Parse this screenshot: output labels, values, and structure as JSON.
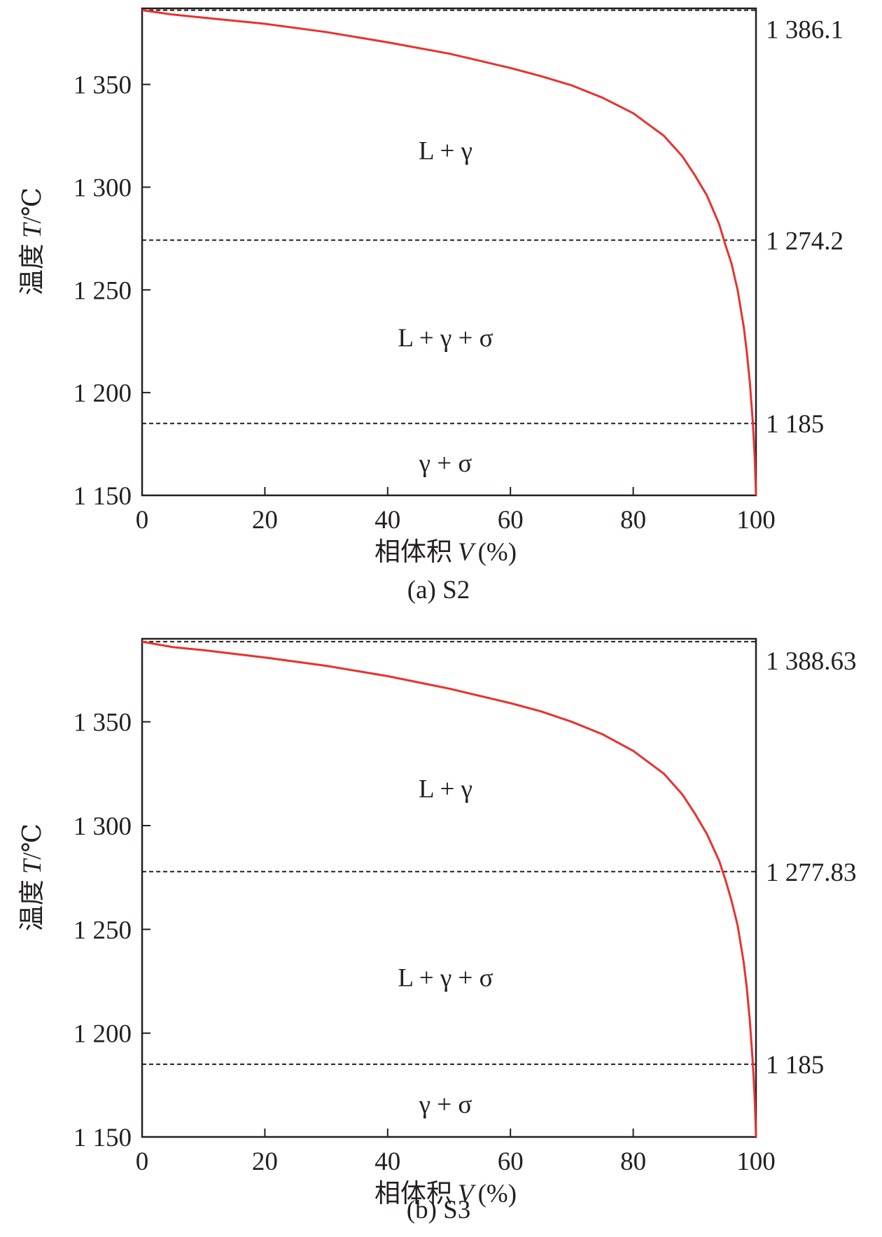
{
  "chart_data": [
    {
      "type": "line",
      "caption": "(a) S2",
      "xlabel": {
        "cjk": "相体积",
        "italic": "V",
        "unit": "(%)"
      },
      "ylabel": {
        "cjk": "温度",
        "italic": "T",
        "unit": "/℃"
      },
      "xlim": [
        0,
        100
      ],
      "ylim": [
        1150,
        1387
      ],
      "xticks": [
        0,
        20,
        40,
        60,
        80,
        100
      ],
      "xtick_labels": [
        "0",
        "20",
        "40",
        "60",
        "80",
        "100"
      ],
      "yticks": [
        1150,
        1200,
        1250,
        1300,
        1350
      ],
      "ytick_labels": [
        "1 150",
        "1 200",
        "1 250",
        "1 300",
        "1 350"
      ],
      "reference_lines": [
        {
          "y": 1386.1,
          "label": "1 386.1"
        },
        {
          "y": 1274.2,
          "label": "1 274.2"
        },
        {
          "y": 1185,
          "label": "1 185"
        }
      ],
      "regions": [
        {
          "label": "L + γ",
          "x": 50,
          "y": 1318
        },
        {
          "label": "L + γ + σ",
          "x": 50,
          "y": 1227
        },
        {
          "label": "γ + σ",
          "x": 50,
          "y": 1166
        }
      ],
      "series": [
        {
          "color": "#e8322e",
          "x": [
            0,
            5,
            10,
            20,
            30,
            40,
            50,
            60,
            65,
            70,
            75,
            80,
            85,
            88,
            90,
            92,
            94,
            95,
            96,
            97,
            98,
            98.5,
            99,
            99.5,
            99.8,
            100
          ],
          "y": [
            1386.1,
            1384,
            1382.5,
            1379.5,
            1375.5,
            1370.5,
            1365,
            1358,
            1354,
            1349.5,
            1343.5,
            1336,
            1325,
            1315,
            1306,
            1296,
            1282,
            1272,
            1263,
            1250,
            1232,
            1220,
            1205,
            1185,
            1168,
            1150
          ]
        }
      ]
    },
    {
      "type": "line",
      "caption": "(b) S3",
      "xlabel": {
        "cjk": "相体积",
        "italic": "V",
        "unit": "(%)"
      },
      "ylabel": {
        "cjk": "温度",
        "italic": "T",
        "unit": "/℃"
      },
      "xlim": [
        0,
        100
      ],
      "ylim": [
        1150,
        1390
      ],
      "xticks": [
        0,
        20,
        40,
        60,
        80,
        100
      ],
      "xtick_labels": [
        "0",
        "20",
        "40",
        "60",
        "80",
        "100"
      ],
      "yticks": [
        1150,
        1200,
        1250,
        1300,
        1350
      ],
      "ytick_labels": [
        "1 150",
        "1 200",
        "1 250",
        "1 300",
        "1 350"
      ],
      "reference_lines": [
        {
          "y": 1388.63,
          "label": "1 388.63"
        },
        {
          "y": 1277.83,
          "label": "1 277.83"
        },
        {
          "y": 1185,
          "label": "1 185"
        }
      ],
      "regions": [
        {
          "label": "L + γ",
          "x": 50,
          "y": 1318
        },
        {
          "label": "L + γ + σ",
          "x": 50,
          "y": 1227
        },
        {
          "label": "γ + σ",
          "x": 50,
          "y": 1166
        }
      ],
      "series": [
        {
          "color": "#e8322e",
          "x": [
            0,
            5,
            10,
            20,
            30,
            40,
            50,
            60,
            65,
            70,
            75,
            80,
            85,
            88,
            90,
            92,
            94,
            95,
            96,
            97,
            98,
            98.5,
            99,
            99.5,
            99.8,
            100
          ],
          "y": [
            1388.63,
            1386,
            1384.5,
            1381,
            1377,
            1372,
            1366,
            1359,
            1355,
            1350,
            1344,
            1336,
            1325,
            1315,
            1306,
            1296,
            1283,
            1274,
            1264,
            1252,
            1234,
            1222,
            1206,
            1185,
            1168,
            1150
          ]
        }
      ]
    }
  ]
}
